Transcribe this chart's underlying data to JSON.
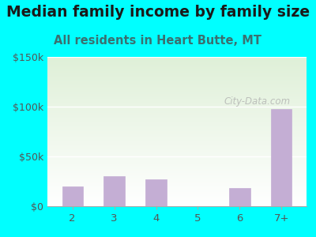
{
  "title": "Median family income by family size",
  "subtitle": "All residents in Heart Butte, MT",
  "categories": [
    "2",
    "3",
    "4",
    "5",
    "6",
    "7+"
  ],
  "values": [
    20000,
    30000,
    27000,
    0,
    18000,
    98000
  ],
  "bar_color": "#C4AED4",
  "background_color": "#00FFFF",
  "plot_bg_top": "#dff0d8",
  "plot_bg_bottom": "#ffffff",
  "title_color": "#1a1a1a",
  "subtitle_color": "#3a7070",
  "tick_color": "#555555",
  "ylim": [
    0,
    150000
  ],
  "yticks": [
    0,
    50000,
    100000,
    150000
  ],
  "ytick_labels": [
    "$0",
    "$50k",
    "$100k",
    "$150k"
  ],
  "title_fontsize": 13.5,
  "subtitle_fontsize": 10.5,
  "watermark": "City-Data.com"
}
